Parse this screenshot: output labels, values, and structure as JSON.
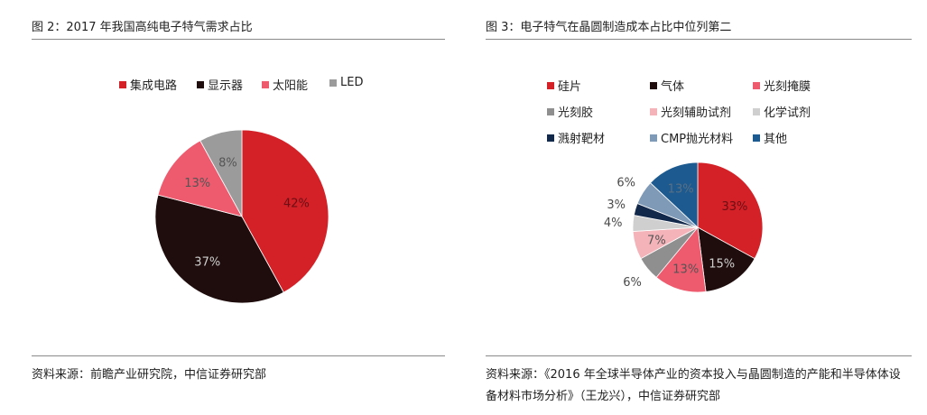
{
  "figures": {
    "left": {
      "title": "图 2：2017 年我国高纯电子特气需求占比",
      "source": "资料来源：前瞻产业研究院，中信证券研究部"
    },
    "right": {
      "title": "图 3：电子特气在晶圆制造成本占比中位列第二",
      "source": "资料来源：《2016 年全球半导体产业的资本投入与晶圆制造的产能和半导体体设备材料市场分析》（王龙兴），中信证券研究部"
    }
  },
  "chart_data": [
    {
      "type": "pie",
      "title": "",
      "series": [
        {
          "name": "集成电路",
          "value": 42,
          "label": "42%",
          "color": "#d42027"
        },
        {
          "name": "显示器",
          "value": 37,
          "label": "37%",
          "color": "#1f0d0d"
        },
        {
          "name": "太阳能",
          "value": 13,
          "label": "13%",
          "color": "#ee5a6e"
        },
        {
          "name": "LED",
          "value": 8,
          "label": "8%",
          "color": "#9b9b9b"
        }
      ],
      "legend_position": "top"
    },
    {
      "type": "pie",
      "title": "",
      "series": [
        {
          "name": "硅片",
          "value": 33,
          "label": "33%",
          "color": "#d42027"
        },
        {
          "name": "气体",
          "value": 15,
          "label": "15%",
          "color": "#1f0d0d"
        },
        {
          "name": "光刻掩膜",
          "value": 13,
          "label": "13%",
          "color": "#ee5a6e"
        },
        {
          "name": "光刻胶",
          "value": 6,
          "label": "6%",
          "color": "#8f8f8f"
        },
        {
          "name": "光刻辅助试剂",
          "value": 7,
          "label": "7%",
          "color": "#f4b3b9"
        },
        {
          "name": "化学试剂",
          "value": 4,
          "label": "4%",
          "color": "#cfcfcf"
        },
        {
          "name": "溅射靶材",
          "value": 3,
          "label": "3%",
          "color": "#13294b"
        },
        {
          "name": "CMP抛光材料",
          "value": 6,
          "label": "6%",
          "color": "#7f9ab6"
        },
        {
          "name": "其他",
          "value": 13,
          "label": "13%",
          "color": "#1c5a8f"
        }
      ],
      "legend_position": "top"
    }
  ]
}
